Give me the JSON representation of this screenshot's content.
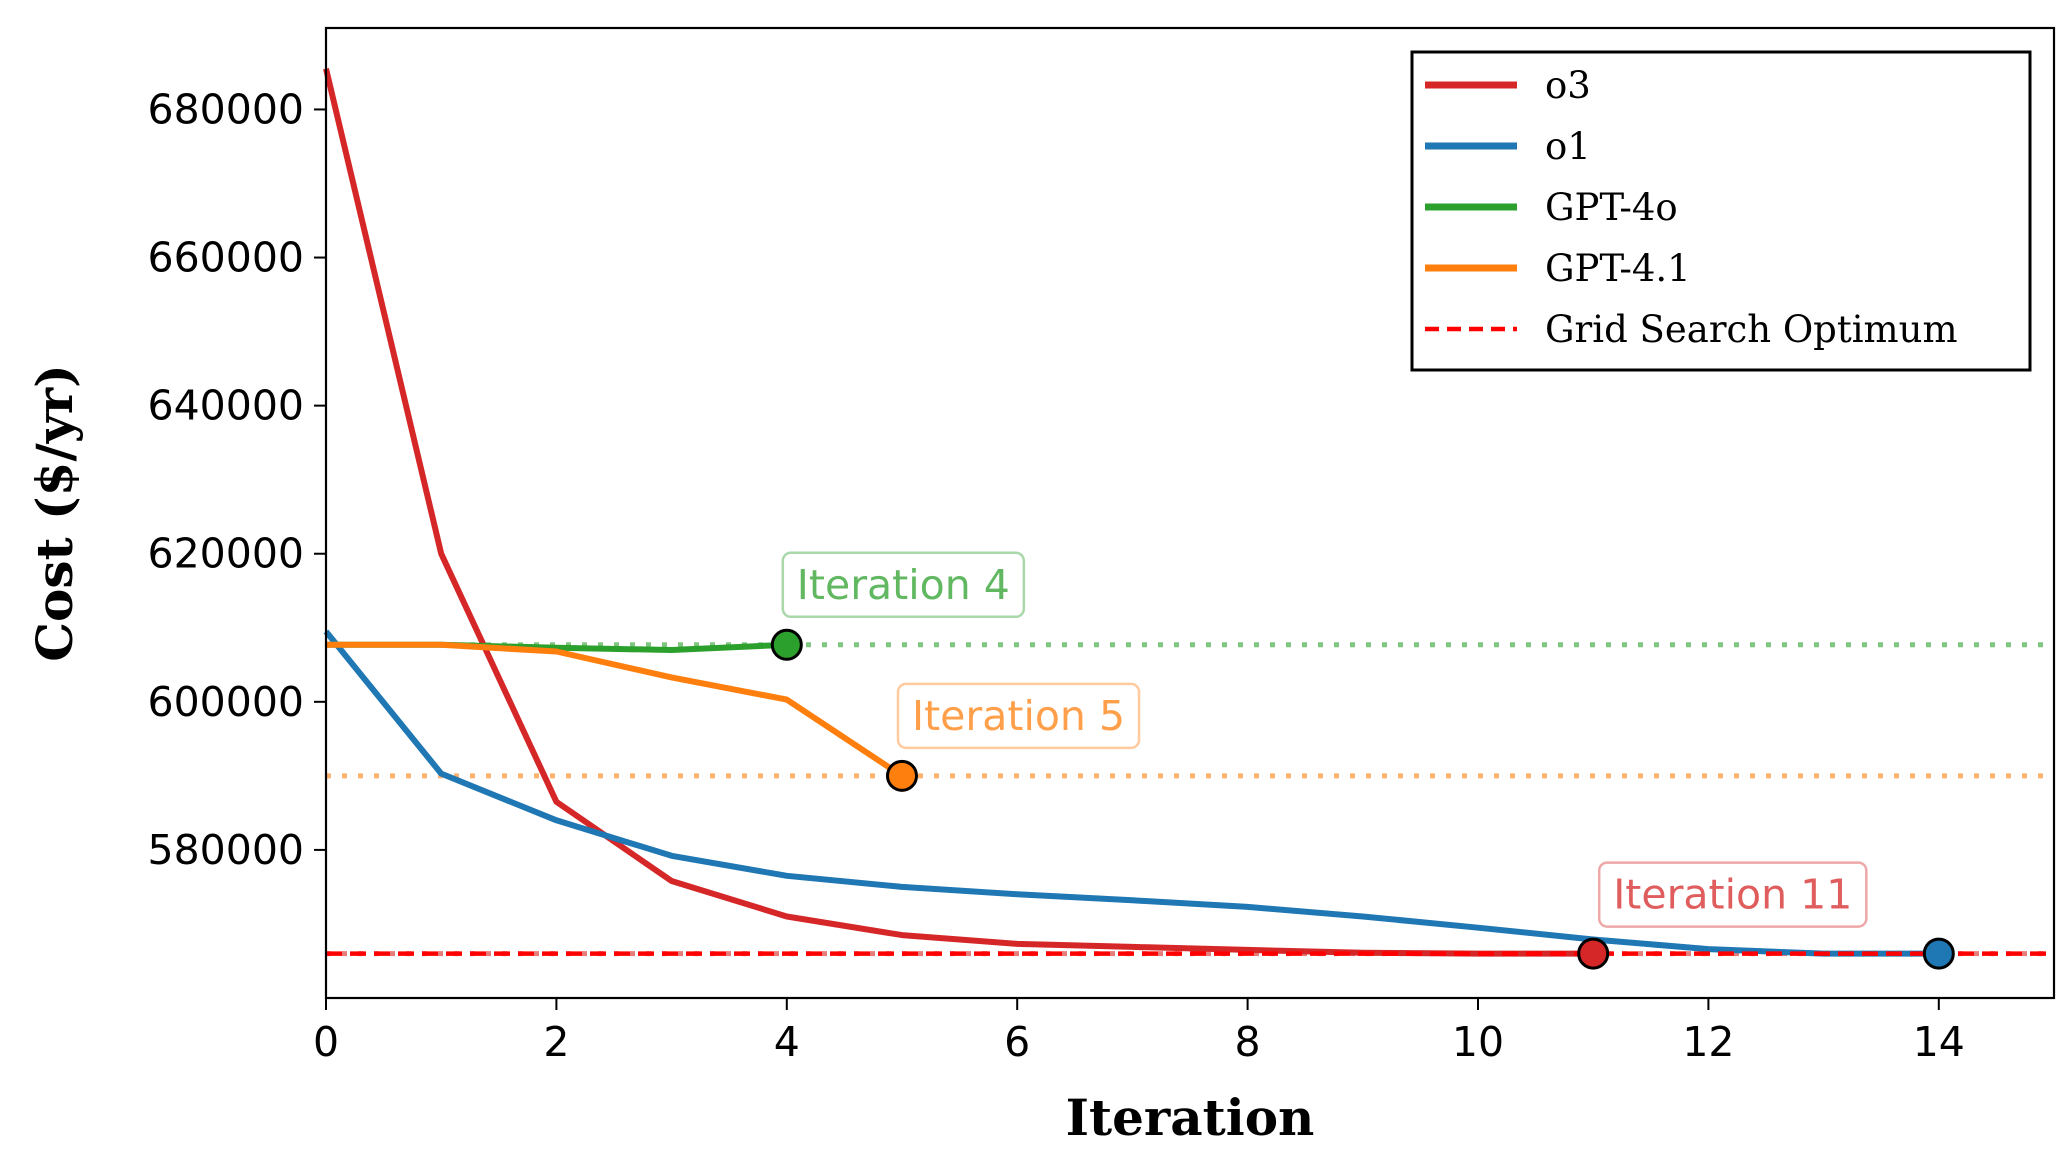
{
  "chart_data": {
    "type": "line",
    "title": "",
    "xlabel": "Iteration",
    "ylabel": "Cost ($/yr)",
    "xlim": [
      0,
      15
    ],
    "ylim": [
      560000,
      691000
    ],
    "xticks": [
      0,
      2,
      4,
      6,
      8,
      10,
      12,
      14
    ],
    "yticks": [
      580000,
      600000,
      620000,
      640000,
      660000,
      680000
    ],
    "grid": false,
    "legend_position": "top-right",
    "series": [
      {
        "name": "o3",
        "color": "#d62728",
        "x": [
          0,
          1,
          2,
          3,
          4,
          5,
          6,
          7,
          8,
          9,
          10,
          11
        ],
        "values": [
          685500,
          620000,
          586500,
          575800,
          571000,
          568500,
          567300,
          566900,
          566500,
          566100,
          566000,
          566000
        ],
        "final_iteration": 11,
        "annotation": "Iteration 11"
      },
      {
        "name": "o1",
        "color": "#1f77b4",
        "x": [
          0,
          1,
          2,
          3,
          4,
          5,
          6,
          7,
          8,
          9,
          10,
          11,
          12,
          13,
          14
        ],
        "values": [
          609500,
          590300,
          584000,
          579200,
          576500,
          575000,
          574000,
          573200,
          572300,
          571000,
          569500,
          567900,
          566600,
          566000,
          566000
        ],
        "final_iteration": 14
      },
      {
        "name": "GPT-4o",
        "color": "#2ca02c",
        "x": [
          0,
          1,
          2,
          3,
          4
        ],
        "values": [
          607700,
          607700,
          607300,
          607000,
          607700
        ],
        "final_iteration": 4,
        "annotation": "Iteration 4"
      },
      {
        "name": "GPT-4.1",
        "color": "#ff7f0e",
        "x": [
          0,
          1,
          2,
          3,
          4,
          5
        ],
        "values": [
          607700,
          607700,
          606800,
          603300,
          600300,
          590000
        ],
        "final_iteration": 5,
        "annotation": "Iteration 5"
      }
    ],
    "reference_lines": [
      {
        "name": "Grid Search Optimum",
        "value": 566000,
        "style": "dashed",
        "color": "#ff0000"
      }
    ],
    "best_value_lines": [
      {
        "series": "GPT-4o",
        "value": 607700,
        "color": "#2ca02c"
      },
      {
        "series": "GPT-4.1",
        "value": 590000,
        "color": "#ff7f0e"
      },
      {
        "series": "o3",
        "value": 566000,
        "color": "#d62728"
      }
    ]
  }
}
